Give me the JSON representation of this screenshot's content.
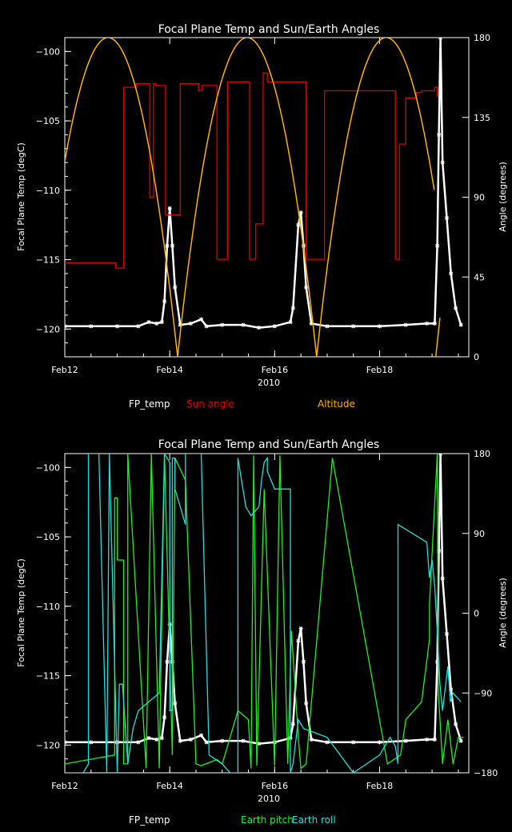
{
  "colors": {
    "background": "#000000",
    "axes": "#ffffff",
    "fp_temp": "#ffffff",
    "sun_angle": "#e00000",
    "altitude": "#ffb000",
    "earth_pitch": "#22ee22",
    "earth_roll": "#22dddd"
  },
  "chart_data": [
    {
      "type": "line",
      "title": "Focal Plane Temp and Sun/Earth Angles",
      "xlabel": "2010",
      "ylabel": "Focal Plane Temp (degC)",
      "y2label": "Angle (degrees)",
      "xlim": [
        0,
        7.7
      ],
      "ylim": [
        -122,
        -99
      ],
      "y2lim": [
        0,
        180
      ],
      "x_ticks": [
        {
          "x": 0,
          "label": "Feb12"
        },
        {
          "x": 2,
          "label": "Feb14"
        },
        {
          "x": 4,
          "label": "Feb16"
        },
        {
          "x": 6,
          "label": "Feb18"
        }
      ],
      "y_ticks": [
        {
          "v": -100,
          "label": "−100"
        },
        {
          "v": -105,
          "label": "−105"
        },
        {
          "v": -110,
          "label": "−110"
        },
        {
          "v": -115,
          "label": "−115"
        },
        {
          "v": -120,
          "label": "−120"
        }
      ],
      "y2_ticks": [
        {
          "v": 0,
          "label": "0"
        },
        {
          "v": 45,
          "label": "45"
        },
        {
          "v": 90,
          "label": "90"
        },
        {
          "v": 135,
          "label": "135"
        },
        {
          "v": 180,
          "label": "180"
        }
      ],
      "legend": [
        {
          "name": "FP_temp",
          "color": "#ffffff",
          "pos": 0.2
        },
        {
          "name": "Sun angle",
          "color": "#e00000",
          "pos": 0.38
        },
        {
          "name": "Altitude",
          "color": "#ffb000",
          "pos": 0.79
        }
      ],
      "series": [
        {
          "name": "FP_temp",
          "axis": "left",
          "style": "marker",
          "color": "#ffffff",
          "x": [
            0,
            0.5,
            1,
            1.4,
            1.6,
            1.75,
            1.85,
            1.9,
            1.95,
            2.0,
            2.05,
            2.1,
            2.2,
            2.4,
            2.6,
            2.7,
            3.0,
            3.4,
            3.7,
            4.0,
            4.3,
            4.35,
            4.45,
            4.5,
            4.55,
            4.6,
            4.7,
            5.0,
            5.5,
            6.0,
            6.5,
            6.9,
            7.05,
            7.1,
            7.13,
            7.16,
            7.2,
            7.28,
            7.36,
            7.45,
            7.55
          ],
          "y": [
            -119.8,
            -119.8,
            -119.8,
            -119.8,
            -119.5,
            -119.6,
            -119.5,
            -118,
            -114,
            -111.3,
            -114,
            -117,
            -119.7,
            -119.6,
            -119.3,
            -119.8,
            -119.7,
            -119.7,
            -119.9,
            -119.8,
            -119.5,
            -118.5,
            -112.5,
            -111.6,
            -114,
            -117,
            -119.6,
            -119.8,
            -119.8,
            -119.8,
            -119.7,
            -119.6,
            -119.6,
            -114,
            -106,
            -99,
            -108,
            -112,
            -116,
            -118.5,
            -119.7
          ]
        },
        {
          "name": "Sun angle",
          "axis": "right",
          "style": "line",
          "color": "#e00000",
          "x": [
            0,
            0.97,
            0.97,
            1.12,
            1.12,
            1.36,
            1.36,
            1.62,
            1.62,
            1.69,
            1.69,
            1.73,
            1.73,
            1.92,
            1.92,
            2.2,
            2.2,
            2.55,
            2.55,
            2.61,
            2.61,
            2.9,
            2.9,
            3.1,
            3.1,
            3.52,
            3.52,
            3.64,
            3.64,
            3.78,
            3.78,
            3.86,
            3.86,
            4.6,
            4.6,
            4.95,
            4.95,
            6.3,
            6.3,
            6.38,
            6.38,
            6.5,
            6.5,
            6.7,
            6.7,
            6.8,
            6.8,
            7.05,
            7.05,
            7.1,
            7.1,
            7.12
          ],
          "y": [
            53,
            53,
            50,
            50,
            152,
            152,
            154,
            154,
            90,
            90,
            154,
            154,
            153,
            153,
            80,
            80,
            154,
            154,
            150,
            150,
            153,
            153,
            55,
            55,
            155,
            155,
            55,
            55,
            75,
            75,
            160,
            160,
            155,
            155,
            55,
            55,
            150,
            150,
            55,
            55,
            120,
            120,
            146,
            146,
            149,
            149,
            150,
            150,
            152,
            152,
            147,
            147
          ]
        },
        {
          "name": "Altitude",
          "axis": "right",
          "style": "curve",
          "color": "#ffb000",
          "period": 2.65,
          "peak": 180,
          "phase": -0.5,
          "xmax": 7.04,
          "stub": [
            7.07,
            7.15,
            0,
            22
          ]
        }
      ]
    },
    {
      "type": "line",
      "title": "Focal Plane Temp and Sun/Earth Angles",
      "xlabel": "2010",
      "ylabel": "Focal Plane Temp (degC)",
      "y2label": "Angle (degrees)",
      "xlim": [
        0,
        7.7
      ],
      "ylim": [
        -122,
        -99
      ],
      "y2lim": [
        -180,
        180
      ],
      "x_ticks": [
        {
          "x": 0,
          "label": "Feb12"
        },
        {
          "x": 2,
          "label": "Feb14"
        },
        {
          "x": 4,
          "label": "Feb16"
        },
        {
          "x": 6,
          "label": "Feb18"
        }
      ],
      "y_ticks": [
        {
          "v": -100,
          "label": "−100"
        },
        {
          "v": -105,
          "label": "−105"
        },
        {
          "v": -110,
          "label": "−110"
        },
        {
          "v": -115,
          "label": "−115"
        },
        {
          "v": -120,
          "label": "−120"
        }
      ],
      "y2_ticks": [
        {
          "v": -180,
          "label": "−180"
        },
        {
          "v": -90,
          "label": "−90"
        },
        {
          "v": 0,
          "label": "0"
        },
        {
          "v": 90,
          "label": "90"
        },
        {
          "v": 180,
          "label": "180"
        }
      ],
      "legend": [
        {
          "name": "FP_temp",
          "color": "#ffffff",
          "pos": 0.2
        },
        {
          "name": "Earth pitch",
          "color": "#22ee22",
          "pos": 0.55
        },
        {
          "name": "Earth roll",
          "color": "#22dddd",
          "pos": 0.71
        }
      ],
      "series": [
        {
          "name": "FP_temp",
          "axis": "left",
          "style": "marker",
          "color": "#ffffff",
          "x": [
            0,
            0.5,
            1,
            1.4,
            1.6,
            1.75,
            1.85,
            1.9,
            1.95,
            2.0,
            2.05,
            2.1,
            2.2,
            2.4,
            2.6,
            2.7,
            3.0,
            3.4,
            3.7,
            4.0,
            4.3,
            4.35,
            4.45,
            4.5,
            4.55,
            4.6,
            4.7,
            5.0,
            5.5,
            6.0,
            6.5,
            6.9,
            7.05,
            7.1,
            7.13,
            7.16,
            7.2,
            7.28,
            7.36,
            7.45,
            7.55
          ],
          "y": [
            -119.8,
            -119.8,
            -119.8,
            -119.8,
            -119.5,
            -119.6,
            -119.5,
            -118,
            -114,
            -111.3,
            -114,
            -117,
            -119.7,
            -119.6,
            -119.3,
            -119.8,
            -119.7,
            -119.7,
            -119.9,
            -119.8,
            -119.5,
            -118.5,
            -112.5,
            -111.6,
            -114,
            -117,
            -119.6,
            -119.8,
            -119.8,
            -119.8,
            -119.7,
            -119.6,
            -119.6,
            -114,
            -106,
            -99,
            -108,
            -112,
            -116,
            -118.5,
            -119.7
          ]
        },
        {
          "name": "Earth pitch",
          "axis": "right",
          "style": "line",
          "color": "#22ee22",
          "x": [
            0,
            0.95,
            0.95,
            1.0,
            1.0,
            1.12,
            1.12,
            1.2,
            1.2,
            1.55,
            1.55,
            1.65,
            1.65,
            1.8,
            1.8,
            1.9,
            1.9,
            2.05,
            2.05,
            2.1,
            2.1,
            2.3,
            2.3,
            2.5,
            2.5,
            2.6,
            2.6,
            2.9,
            2.9,
            3.0,
            3.0,
            3.3,
            3.3,
            3.5,
            3.5,
            3.55,
            3.55,
            3.6,
            3.6,
            3.66,
            3.66,
            3.8,
            3.8,
            4.0,
            4.0,
            4.1,
            4.1,
            4.25,
            4.25,
            4.32,
            4.32,
            4.45,
            4.45,
            4.5,
            4.5,
            4.6,
            4.6,
            5.1,
            5.1,
            6.15,
            6.15,
            6.4,
            6.4,
            6.5,
            6.5,
            6.8,
            6.8,
            6.95,
            6.95,
            7.1,
            7.12,
            7.2,
            7.3,
            7.4,
            7.5,
            7.6
          ],
          "y": [
            -170,
            -160,
            130,
            130,
            60,
            60,
            -170,
            -170,
            180,
            -175,
            -175,
            180,
            180,
            -175,
            -175,
            180,
            180,
            -160,
            -160,
            175,
            175,
            150,
            150,
            -170,
            -170,
            -172,
            -172,
            -165,
            -165,
            -170,
            -170,
            -110,
            -110,
            -120,
            -120,
            -175,
            -175,
            178,
            178,
            -172,
            -172,
            140,
            140,
            -172,
            -172,
            178,
            178,
            -170,
            -170,
            -20,
            -20,
            -140,
            -140,
            -175,
            -175,
            -170,
            -170,
            175,
            175,
            -170,
            -170,
            -160,
            -160,
            -120,
            -120,
            -100,
            -100,
            -30,
            10,
            180,
            -90,
            -170,
            -120,
            -170,
            -140,
            -140
          ]
        },
        {
          "name": "Earth roll",
          "axis": "right",
          "style": "line",
          "color": "#22dddd",
          "x": [
            0,
            0.35,
            0.45,
            0.45,
            0.65,
            0.8,
            0.8,
            0.85,
            0.85,
            1.0,
            1.0,
            1.04,
            1.04,
            1.1,
            1.2,
            1.3,
            1.4,
            1.6,
            1.8,
            1.9,
            2.0,
            2.0,
            2.05,
            2.05,
            2.1,
            2.1,
            2.2,
            2.3,
            2.3,
            2.6,
            2.75,
            2.75,
            3.0,
            3.15,
            3.3,
            3.3,
            3.45,
            3.55,
            3.7,
            3.75,
            3.8,
            3.86,
            3.86,
            4.0,
            4.2,
            4.3,
            4.3,
            4.35,
            4.45,
            4.5,
            4.55,
            5.0,
            5.5,
            5.5,
            6.0,
            6.2,
            6.3,
            6.35,
            6.35,
            6.9,
            6.95,
            7.0,
            7.05,
            7.1,
            7.15,
            7.2,
            7.3,
            7.35,
            7.4,
            7.55
          ],
          "y": [
            -180,
            -180,
            -170,
            180,
            180,
            -180,
            -180,
            180,
            180,
            -180,
            -180,
            -80,
            -80,
            -80,
            -170,
            -130,
            -110,
            -100,
            -90,
            180,
            170,
            -110,
            -110,
            175,
            175,
            140,
            120,
            100,
            180,
            180,
            -160,
            -160,
            -170,
            -180,
            -180,
            175,
            120,
            110,
            120,
            150,
            170,
            175,
            160,
            140,
            140,
            140,
            -180,
            -170,
            -120,
            -125,
            -130,
            -140,
            -180,
            -180,
            -160,
            -140,
            -150,
            -170,
            100,
            80,
            40,
            60,
            30,
            -20,
            -80,
            -110,
            -60,
            -100,
            -90,
            -100
          ]
        }
      ]
    }
  ]
}
